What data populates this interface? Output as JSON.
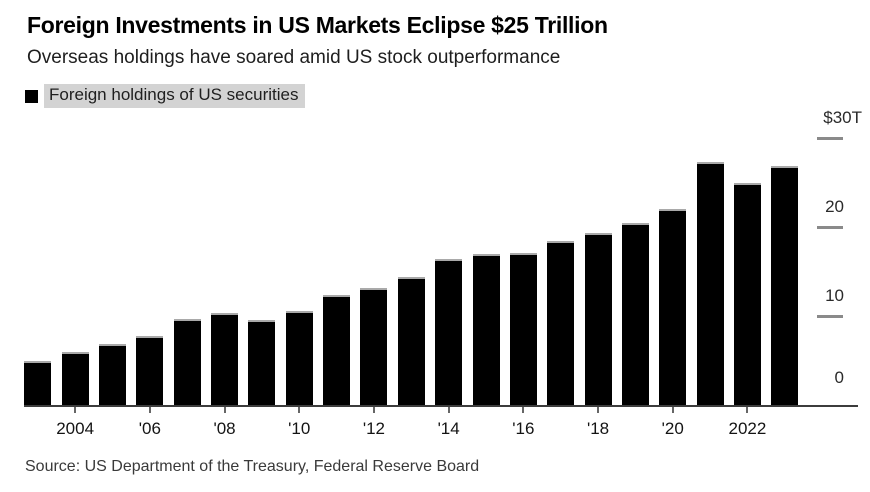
{
  "header": {
    "title": "Foreign Investments in US Markets Eclipse $25 Trillion",
    "subtitle": "Overseas holdings have soared amid US stock outperformance"
  },
  "legend": {
    "label": "Foreign holdings of US securities",
    "swatch_color": "#000000",
    "highlight_color": "#d3d3d3"
  },
  "footer": {
    "source": "Source: US Department of the Treasury, Federal Reserve Board"
  },
  "chart_data": {
    "type": "bar",
    "title": "Foreign Investments in US Markets Eclipse $25 Trillion",
    "subtitle": "Overseas holdings have soared amid US stock outperformance",
    "series_name": "Foreign holdings of US securities",
    "unit": "trillions of US dollars",
    "bar_color": "#000000",
    "grid": false,
    "legend_position": "top-left",
    "y_axis_side": "right",
    "ylim": [
      0,
      30
    ],
    "years": [
      2003,
      2004,
      2005,
      2006,
      2007,
      2008,
      2009,
      2010,
      2011,
      2012,
      2013,
      2014,
      2015,
      2016,
      2017,
      2018,
      2019,
      2020,
      2021,
      2022,
      2023
    ],
    "values": [
      4.9,
      6.0,
      6.8,
      7.7,
      9.7,
      10.3,
      9.6,
      10.6,
      12.4,
      13.2,
      14.4,
      16.4,
      17.0,
      17.1,
      18.4,
      19.3,
      20.5,
      22.0,
      27.3,
      24.9,
      26.9
    ],
    "x_ticks": [
      {
        "year": 2004,
        "label": "2004"
      },
      {
        "year": 2006,
        "label": "'06"
      },
      {
        "year": 2008,
        "label": "'08"
      },
      {
        "year": 2010,
        "label": "'10"
      },
      {
        "year": 2012,
        "label": "'12"
      },
      {
        "year": 2014,
        "label": "'14"
      },
      {
        "year": 2016,
        "label": "'16"
      },
      {
        "year": 2018,
        "label": "'18"
      },
      {
        "year": 2020,
        "label": "'20"
      },
      {
        "year": 2022,
        "label": "2022"
      }
    ],
    "y_ticks": [
      {
        "value": 30,
        "label": "$30T"
      },
      {
        "value": 20,
        "label": "20"
      },
      {
        "value": 10,
        "label": "10"
      },
      {
        "value": 0,
        "label": "0"
      }
    ]
  }
}
